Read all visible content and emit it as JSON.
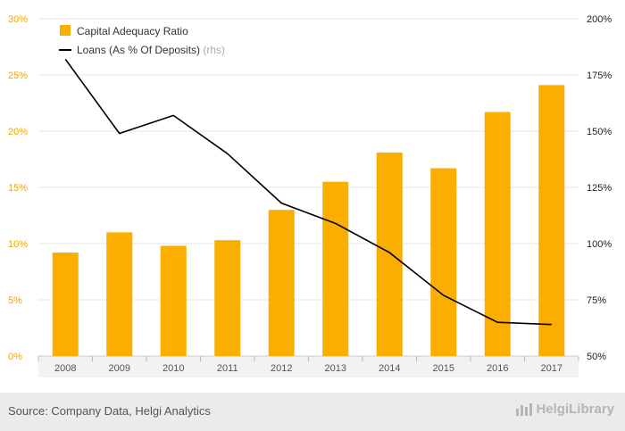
{
  "chart_data": {
    "type": "bar",
    "categories": [
      "2008",
      "2009",
      "2010",
      "2011",
      "2012",
      "2013",
      "2014",
      "2015",
      "2016",
      "2017"
    ],
    "series": [
      {
        "name": "Capital Adequacy Ratio",
        "type": "bar",
        "axis": "left",
        "unit": "%",
        "values": [
          9.2,
          11.0,
          9.8,
          10.3,
          13.0,
          15.5,
          18.1,
          16.7,
          21.7,
          24.1
        ]
      },
      {
        "name": "Loans (As % Of Deposits)",
        "suffix": "(rhs)",
        "type": "line",
        "axis": "right",
        "unit": "%",
        "values": [
          182,
          149,
          157,
          140,
          118,
          109,
          96,
          77,
          65,
          64
        ]
      }
    ],
    "left_axis": {
      "ticks": [
        "0%",
        "5%",
        "10%",
        "15%",
        "20%",
        "25%",
        "30%"
      ],
      "ylim": [
        0,
        30
      ]
    },
    "right_axis": {
      "ticks": [
        "50%",
        "75%",
        "100%",
        "125%",
        "150%",
        "175%",
        "200%"
      ],
      "ylim": [
        50,
        200
      ]
    },
    "legend_position": "top-left",
    "grid": true,
    "colors": {
      "bar": "#f9ae00",
      "line": "#000000",
      "left_tick": "#f0a500",
      "right_tick": "#222222",
      "grid": "#e6e6e6",
      "x_tick": "#555555"
    }
  },
  "footer": {
    "source": "Source: Company Data, Helgi Analytics",
    "logo": "HelgiLibrary"
  }
}
